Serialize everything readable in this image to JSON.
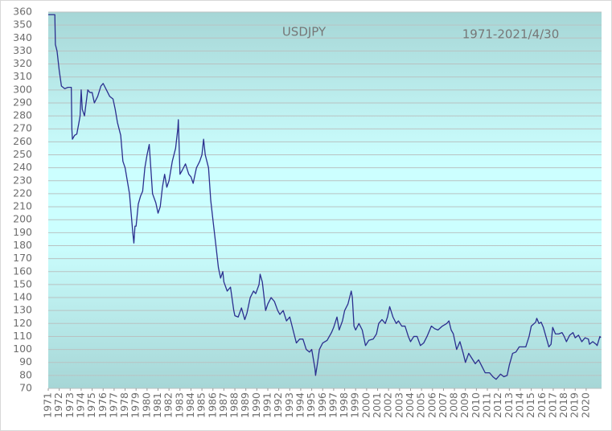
{
  "chart_data": {
    "type": "line",
    "title": "USDJPY",
    "subtitle": "1971-2021/4/30",
    "color": "#2b2f8f",
    "grid": true,
    "xlim": [
      1971,
      2021.4
    ],
    "xticks": [
      1971,
      1972,
      1973,
      1974,
      1975,
      1976,
      1977,
      1978,
      1979,
      1980,
      1981,
      1982,
      1983,
      1984,
      1985,
      1986,
      1987,
      1988,
      1989,
      1990,
      1991,
      1992,
      1993,
      1994,
      1995,
      1996,
      1997,
      1998,
      1999,
      2000,
      2001,
      2002,
      2003,
      2004,
      2005,
      2006,
      2007,
      2008,
      2009,
      2010,
      2011,
      2012,
      2013,
      2014,
      2015,
      2016,
      2017,
      2018,
      2019,
      2020
    ],
    "ylim": [
      70,
      360
    ],
    "yticks": [
      70,
      80,
      90,
      100,
      110,
      120,
      130,
      140,
      150,
      160,
      170,
      180,
      190,
      200,
      210,
      220,
      230,
      240,
      250,
      260,
      270,
      280,
      290,
      300,
      310,
      320,
      330,
      340,
      350,
      360
    ],
    "x": [
      1971,
      1971.6,
      1971.65,
      1971.8,
      1972,
      1972.2,
      1972.5,
      1972.8,
      1973.1,
      1973.15,
      1973.2,
      1973.4,
      1973.6,
      1973.8,
      1973.9,
      1974,
      1974.1,
      1974.3,
      1974.6,
      1974.8,
      1975,
      1975.2,
      1975.5,
      1975.8,
      1976,
      1976.3,
      1976.6,
      1976.9,
      1977.1,
      1977.3,
      1977.6,
      1977.8,
      1978,
      1978.2,
      1978.4,
      1978.55,
      1978.7,
      1978.8,
      1978.9,
      1979,
      1979.2,
      1979.4,
      1979.6,
      1979.8,
      1980,
      1980.2,
      1980.3,
      1980.5,
      1980.8,
      1981,
      1981.2,
      1981.4,
      1981.6,
      1981.8,
      1982,
      1982.3,
      1982.6,
      1982.8,
      1982.85,
      1983,
      1983.2,
      1983.5,
      1983.8,
      1984,
      1984.2,
      1984.5,
      1984.8,
      1985,
      1985.15,
      1985.3,
      1985.6,
      1985.8,
      1986,
      1986.3,
      1986.5,
      1986.7,
      1986.9,
      1987,
      1987.3,
      1987.6,
      1987.9,
      1988,
      1988.3,
      1988.6,
      1988.9,
      1989.1,
      1989.4,
      1989.7,
      1989.9,
      1990.2,
      1990.3,
      1990.5,
      1990.8,
      1991,
      1991.3,
      1991.6,
      1991.9,
      1992.1,
      1992.4,
      1992.7,
      1993,
      1993.3,
      1993.6,
      1993.9,
      1994.2,
      1994.5,
      1994.8,
      1995,
      1995.3,
      1995.35,
      1995.5,
      1995.7,
      1996,
      1996.4,
      1996.8,
      1997,
      1997.3,
      1997.5,
      1997.8,
      1998,
      1998.3,
      1998.6,
      1998.7,
      1998.85,
      1999,
      1999.3,
      1999.6,
      1999.9,
      2000.2,
      2000.6,
      2000.9,
      2001.1,
      2001.4,
      2001.7,
      2001.9,
      2002.1,
      2002.4,
      2002.7,
      2002.9,
      2003.2,
      2003.5,
      2003.8,
      2004,
      2004.3,
      2004.6,
      2004.9,
      2005.2,
      2005.5,
      2005.9,
      2006.2,
      2006.5,
      2006.9,
      2007.3,
      2007.5,
      2007.7,
      2007.9,
      2008.2,
      2008.5,
      2008.8,
      2009,
      2009.3,
      2009.6,
      2009.9,
      2010.2,
      2010.5,
      2010.8,
      2011.2,
      2011.5,
      2011.8,
      2012.2,
      2012.5,
      2012.8,
      2013,
      2013.3,
      2013.6,
      2013.9,
      2014.2,
      2014.5,
      2014.8,
      2015,
      2015.4,
      2015.5,
      2015.7,
      2015.9,
      2016.1,
      2016.4,
      2016.6,
      2016.8,
      2016.95,
      2017.2,
      2017.5,
      2017.8,
      2018,
      2018.2,
      2018.5,
      2018.8,
      2019,
      2019.3,
      2019.6,
      2019.9,
      2020.2,
      2020.3,
      2020.6,
      2020.9,
      2021,
      2021.25,
      2021.33
    ],
    "values": [
      358,
      358,
      335,
      330,
      315,
      303,
      301,
      302,
      302,
      270,
      262,
      265,
      266,
      275,
      280,
      300,
      285,
      280,
      300,
      298,
      298,
      290,
      295,
      303,
      305,
      300,
      295,
      293,
      285,
      275,
      265,
      245,
      240,
      230,
      220,
      205,
      190,
      182,
      195,
      195,
      212,
      218,
      222,
      240,
      250,
      258,
      245,
      220,
      213,
      205,
      210,
      225,
      235,
      225,
      230,
      245,
      255,
      270,
      277,
      235,
      238,
      243,
      235,
      233,
      228,
      240,
      245,
      250,
      262,
      250,
      240,
      215,
      200,
      178,
      163,
      155,
      160,
      152,
      145,
      148,
      130,
      126,
      125,
      132,
      123,
      128,
      140,
      145,
      143,
      150,
      158,
      152,
      130,
      135,
      140,
      137,
      130,
      127,
      130,
      122,
      125,
      115,
      105,
      108,
      108,
      100,
      98,
      100,
      85,
      80,
      88,
      100,
      105,
      107,
      113,
      117,
      125,
      115,
      122,
      130,
      135,
      145,
      140,
      118,
      115,
      120,
      115,
      103,
      107,
      108,
      112,
      120,
      123,
      120,
      125,
      133,
      125,
      120,
      122,
      118,
      118,
      110,
      106,
      110,
      110,
      103,
      105,
      110,
      118,
      116,
      115,
      118,
      120,
      122,
      115,
      112,
      100,
      106,
      97,
      90,
      97,
      93,
      89,
      92,
      87,
      82,
      82,
      79,
      77,
      81,
      79,
      80,
      88,
      97,
      98,
      102,
      102,
      102,
      110,
      118,
      121,
      124,
      120,
      121,
      117,
      108,
      102,
      104,
      117,
      112,
      112,
      113,
      110,
      106,
      111,
      113,
      109,
      111,
      106,
      109,
      108,
      104,
      106,
      104,
      103,
      110,
      109
    ]
  }
}
